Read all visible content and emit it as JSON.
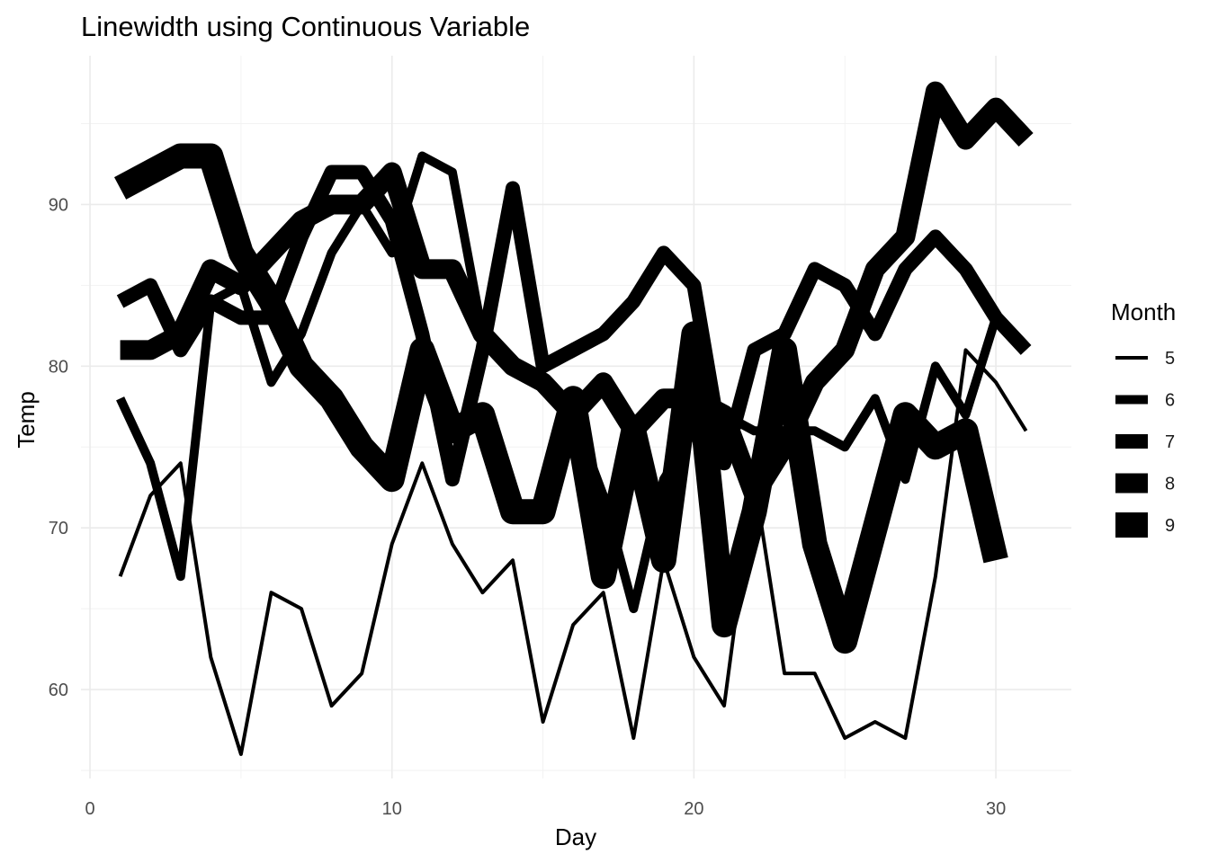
{
  "chart_data": {
    "type": "line",
    "title": "Linewidth using Continuous Variable",
    "xlabel": "Day",
    "ylabel": "Temp",
    "xlim": [
      -0.3,
      32.5
    ],
    "ylim": [
      54.5,
      99.2
    ],
    "x_ticks": [
      0,
      10,
      20,
      30
    ],
    "y_ticks": [
      60,
      70,
      80,
      90
    ],
    "grid": true,
    "legend": {
      "title": "Month",
      "position": "right",
      "labels": [
        "5",
        "6",
        "7",
        "8",
        "9"
      ]
    },
    "series": [
      {
        "name": "5",
        "width": 4,
        "x": [
          1,
          2,
          3,
          4,
          5,
          6,
          7,
          8,
          9,
          10,
          11,
          12,
          13,
          14,
          15,
          16,
          17,
          18,
          19,
          20,
          21,
          22,
          23,
          24,
          25,
          26,
          27,
          28,
          29,
          30,
          31
        ],
        "values": [
          67,
          72,
          74,
          62,
          56,
          66,
          65,
          59,
          61,
          69,
          74,
          69,
          66,
          68,
          58,
          64,
          66,
          57,
          68,
          62,
          59,
          73,
          61,
          61,
          57,
          58,
          57,
          67,
          81,
          79,
          76
        ]
      },
      {
        "name": "6",
        "width": 10,
        "x": [
          1,
          2,
          3,
          4,
          5,
          6,
          7,
          8,
          9,
          10,
          11,
          12,
          13,
          14,
          15,
          16,
          17,
          18,
          19,
          20,
          21,
          22,
          23,
          24,
          25,
          26,
          27,
          28,
          29,
          30
        ],
        "values": [
          78,
          74,
          67,
          84,
          85,
          79,
          82,
          87,
          90,
          87,
          93,
          92,
          82,
          80,
          79,
          77,
          72,
          65,
          73,
          76,
          77,
          76,
          76,
          76,
          75,
          78,
          73,
          80,
          77,
          83
        ]
      },
      {
        "name": "7",
        "width": 16,
        "x": [
          1,
          2,
          3,
          4,
          5,
          6,
          7,
          8,
          9,
          10,
          11,
          12,
          13,
          14,
          15,
          16,
          17,
          18,
          19,
          20,
          21,
          22,
          23,
          24,
          25,
          26,
          27,
          28,
          29,
          30,
          31
        ],
        "values": [
          84,
          85,
          81,
          84,
          83,
          83,
          88,
          92,
          92,
          89,
          82,
          73,
          81,
          91,
          80,
          81,
          82,
          84,
          87,
          85,
          74,
          81,
          82,
          86,
          85,
          82,
          86,
          88,
          86,
          83,
          81
        ]
      },
      {
        "name": "8",
        "width": 22,
        "x": [
          1,
          2,
          3,
          4,
          5,
          6,
          7,
          8,
          9,
          10,
          11,
          12,
          13,
          14,
          15,
          16,
          17,
          18,
          19,
          20,
          21,
          22,
          23,
          24,
          25,
          26,
          27,
          28,
          29,
          30,
          31
        ],
        "values": [
          81,
          81,
          82,
          86,
          85,
          87,
          89,
          90,
          90,
          92,
          86,
          86,
          82,
          80,
          79,
          77,
          79,
          76,
          78,
          78,
          77,
          72,
          75,
          79,
          81,
          86,
          88,
          97,
          94,
          96,
          94
        ]
      },
      {
        "name": "9",
        "width": 28,
        "x": [
          1,
          2,
          3,
          4,
          5,
          6,
          7,
          8,
          9,
          10,
          11,
          12,
          13,
          14,
          15,
          16,
          17,
          18,
          19,
          20,
          21,
          22,
          23,
          24,
          25,
          26,
          27,
          28,
          29,
          30
        ],
        "values": [
          91,
          92,
          93,
          93,
          87,
          84,
          80,
          78,
          75,
          73,
          81,
          76,
          77,
          71,
          71,
          78,
          67,
          76,
          68,
          82,
          64,
          71,
          81,
          69,
          63,
          70,
          77,
          75,
          76,
          68
        ]
      }
    ]
  }
}
